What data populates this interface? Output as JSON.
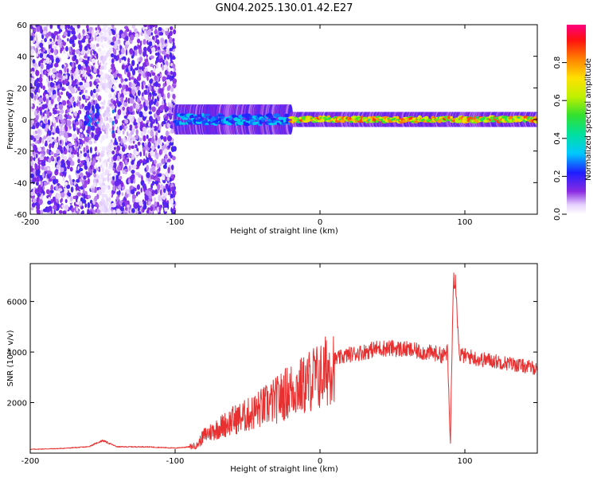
{
  "title": "GN04.2025.130.01.42.E27",
  "colors": {
    "snr_line": "#e83030",
    "axis": "#000000",
    "background": "#ffffff"
  },
  "chart_data": [
    {
      "type": "heatmap",
      "xlabel": "Height of straight line (km)",
      "ylabel": "Frequency (Hz)",
      "xlim": [
        -200,
        150
      ],
      "ylim": [
        -60,
        60
      ],
      "x_ticks": [
        -200,
        -100,
        0,
        100
      ],
      "y_ticks": [
        -60,
        -40,
        -20,
        0,
        20,
        40,
        60
      ],
      "colorbar": {
        "label": "Normalized spectral amplitude",
        "range": [
          0,
          1
        ],
        "ticks": [
          0.0,
          0.2,
          0.4,
          0.6,
          0.8
        ],
        "colormap": "rainbow (white-violet-blue-cyan-green-yellow-red-magenta)"
      },
      "features": [
        {
          "x_range": [
            -200,
            -100
          ],
          "freq_range": [
            -60,
            60
          ],
          "amplitude": 0.1,
          "kind": "broadband noise"
        },
        {
          "x_range": [
            -100,
            -20
          ],
          "freq_range": [
            -6,
            6
          ],
          "amplitude": 0.35,
          "kind": "narrow band near 0 Hz"
        },
        {
          "x_range": [
            -20,
            150
          ],
          "freq_range": [
            -3,
            3
          ],
          "amplitude": 0.85,
          "kind": "strong narrow band at 0 Hz"
        }
      ]
    },
    {
      "type": "line",
      "xlabel": "Height of straight line (km)",
      "ylabel": "SNR (10 * v/v)",
      "xlim": [
        -200,
        150
      ],
      "ylim": [
        0,
        7500
      ],
      "x_ticks": [
        -200,
        -100,
        0,
        100
      ],
      "y_ticks": [
        2000,
        4000,
        6000
      ],
      "x": [
        -200,
        -180,
        -160,
        -150,
        -140,
        -120,
        -100,
        -90,
        -85,
        -80,
        -70,
        -60,
        -50,
        -40,
        -30,
        -20,
        -10,
        -5,
        0,
        5,
        10,
        15,
        20,
        30,
        40,
        50,
        60,
        70,
        80,
        85,
        88,
        90,
        92,
        94,
        96,
        100,
        105,
        110,
        115,
        120,
        130,
        140,
        150
      ],
      "y": [
        150,
        180,
        250,
        500,
        250,
        250,
        200,
        250,
        300,
        700,
        1000,
        1300,
        1500,
        1800,
        2100,
        2500,
        2700,
        3000,
        3000,
        3300,
        3700,
        3800,
        3900,
        4000,
        4150,
        4150,
        4100,
        4000,
        3950,
        3850,
        4000,
        300,
        7200,
        6600,
        3900,
        3850,
        3800,
        3700,
        3700,
        3650,
        3550,
        3450,
        3350
      ]
    }
  ]
}
